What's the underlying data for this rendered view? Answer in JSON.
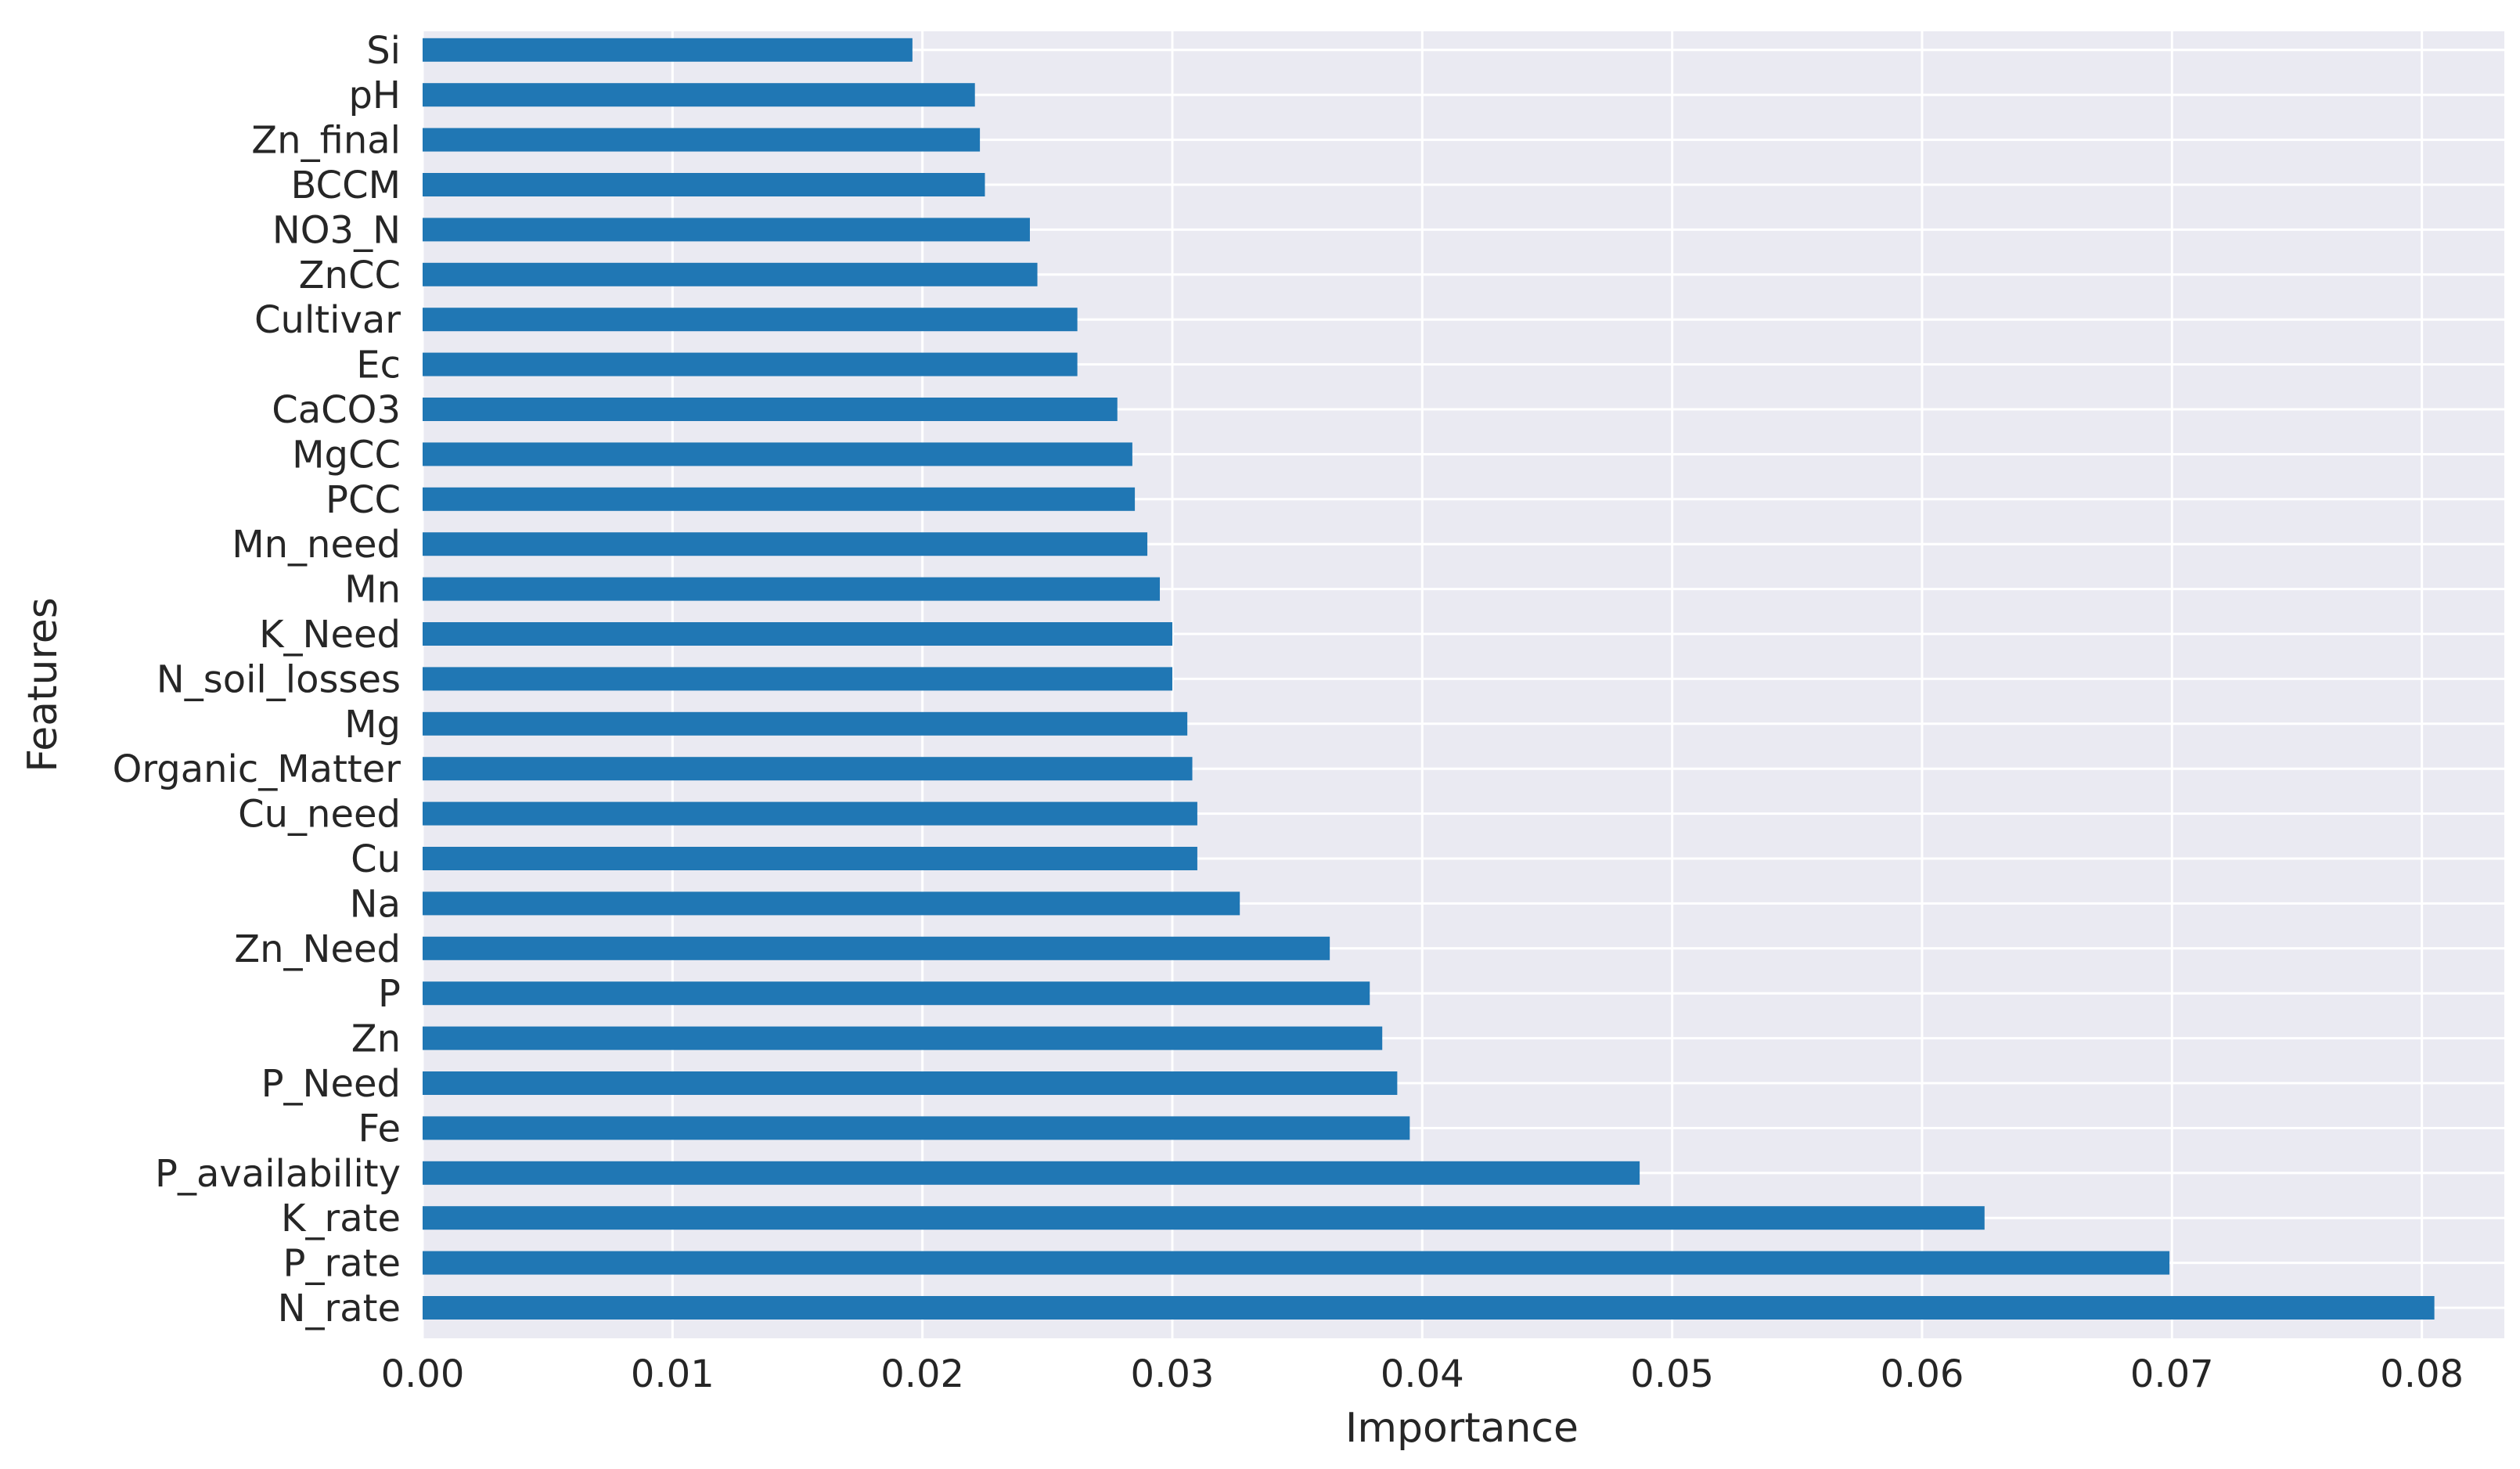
{
  "chart_data": {
    "type": "bar",
    "orientation": "horizontal",
    "xlabel": "Importance",
    "ylabel": "Features",
    "xlim": [
      0.0,
      0.0833
    ],
    "xticks": [
      "0.00",
      "0.01",
      "0.02",
      "0.03",
      "0.04",
      "0.05",
      "0.06",
      "0.07",
      "0.08"
    ],
    "grid": true,
    "colors": {
      "bar": "#2077b4",
      "plot_background": "#eaeaf2",
      "grid": "#ffffff",
      "text": "#262626"
    },
    "categories": [
      "N_rate",
      "P_rate",
      "K_rate",
      "P_availability",
      "Fe",
      "P_Need",
      "Zn",
      "P",
      "Zn_Need",
      "Na",
      "Cu",
      "Cu_need",
      "Organic_Matter",
      "Mg",
      "N_soil_losses",
      "K_Need",
      "Mn",
      "Mn_need",
      "PCC",
      "MgCC",
      "CaCO3",
      "Ec",
      "Cultivar",
      "ZnCC",
      "NO3_N",
      "BCCM",
      "Zn_final",
      "pH",
      "Si"
    ],
    "values": [
      0.0805,
      0.0699,
      0.0625,
      0.0487,
      0.0395,
      0.039,
      0.0384,
      0.0379,
      0.0363,
      0.0327,
      0.031,
      0.031,
      0.0308,
      0.0306,
      0.03,
      0.03,
      0.0295,
      0.029,
      0.0285,
      0.0284,
      0.0278,
      0.0262,
      0.0262,
      0.0246,
      0.0243,
      0.0225,
      0.0223,
      0.0221,
      0.0196
    ]
  }
}
